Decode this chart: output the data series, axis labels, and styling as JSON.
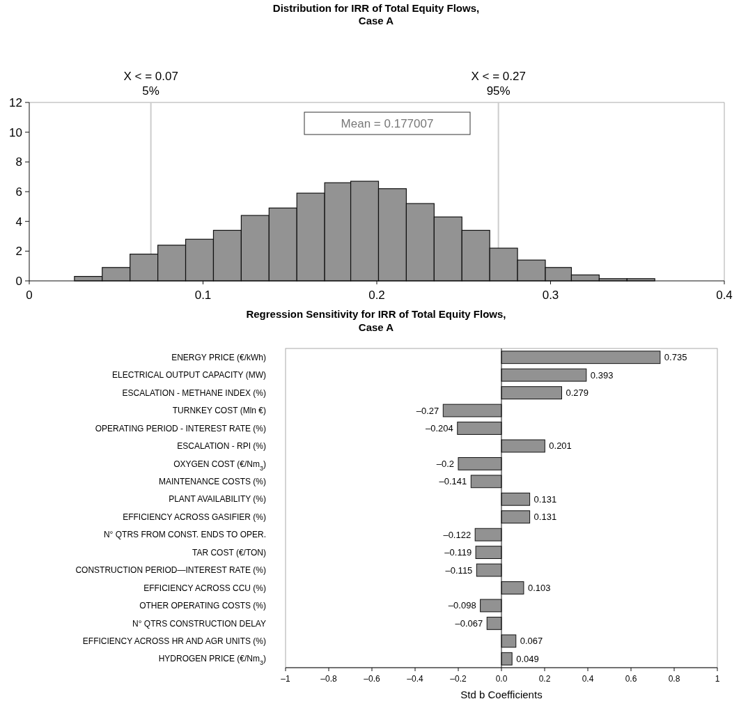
{
  "chart_data": [
    {
      "type": "histogram",
      "title": "Distribution for IRR of Total Equity Flows,\nCase A",
      "bins": [
        0.026,
        0.042,
        0.058,
        0.074,
        0.09,
        0.106,
        0.122,
        0.138,
        0.154,
        0.17,
        0.185,
        0.201,
        0.217,
        0.233,
        0.249,
        0.265,
        0.281,
        0.297,
        0.312,
        0.328,
        0.344,
        0.36
      ],
      "values": [
        0.3,
        0.9,
        1.8,
        2.4,
        2.8,
        3.4,
        4.4,
        4.9,
        5.9,
        6.6,
        6.7,
        6.2,
        5.2,
        4.3,
        3.4,
        2.2,
        1.4,
        0.9,
        0.4,
        0.15,
        0.15
      ],
      "color": "#939393",
      "xlim": [
        0,
        0.4
      ],
      "xticks": [
        0,
        0.1,
        0.2,
        0.3,
        0.4
      ],
      "ylim": [
        0,
        12
      ],
      "yticks": [
        0,
        2,
        4,
        6,
        8,
        10,
        12
      ],
      "ref_lines": [
        {
          "axis": "x",
          "value": 0.07,
          "label": "X < = 0.07\n5%",
          "color": "#cccccc"
        },
        {
          "axis": "x",
          "value": 0.27,
          "label": "X < = 0.27\n95%",
          "color": "#cccccc"
        }
      ],
      "annotations": [
        "Mean = 0.177007"
      ]
    },
    {
      "type": "bar",
      "orientation": "horizontal",
      "title": "Regression Sensitivity for IRR of Total Equity Flows,\nCase A",
      "xlabel": "Std b Coefficients",
      "categories": [
        "ENERGY PRICE (€/kWh)",
        "ELECTRICAL OUTPUT CAPACITY (MW)",
        "ESCALATION - METHANE INDEX (%)",
        "TURNKEY COST (Mln €)",
        "OPERATING PERIOD - INTEREST RATE (%)",
        "ESCALATION - RPI  (%)",
        "OXYGEN COST (€/Nm$_{3}$)",
        "MAINTENANCE COSTS (%)",
        "PLANT AVAILABILITY (%)",
        "EFFICIENCY ACROSS GASIFIER (%)",
        "N° QTRS FROM CONST. ENDS TO OPER.",
        "TAR COST (€/TON)",
        "CONSTRUCTION PERIOD—INTEREST RATE (%)",
        "EFFICIENCY ACROSS CCU (%)",
        "OTHER OPERATING COSTS (%)",
        "N° QTRS CONSTRUCTION DELAY",
        "EFFICIENCY ACROSS HR AND AGR UNITS (%)",
        "HYDROGEN PRICE (€/Nm$_{3}$)"
      ],
      "values": [
        0.735,
        0.393,
        0.279,
        -0.27,
        -0.204,
        0.201,
        -0.2,
        -0.141,
        0.131,
        0.131,
        -0.122,
        -0.119,
        -0.115,
        0.103,
        -0.098,
        -0.067,
        0.067,
        0.049
      ],
      "value_labels": [
        "0.735",
        "0.393",
        "0.279",
        "–0.27",
        "–0.204",
        "0.201",
        "–0.2",
        "–0.141",
        "0.131",
        "0.131",
        "–0.122",
        "–0.119",
        "–0.115",
        "0.103",
        "–0.098",
        "–0.067",
        "0.067",
        "0.049"
      ],
      "color": "#929292",
      "xlim": [
        -1,
        1
      ],
      "xticks": [
        {
          "value": -1,
          "label": "–1"
        },
        {
          "value": -0.8,
          "label": "–0.8"
        },
        {
          "value": -0.6,
          "label": "–0.6"
        },
        {
          "value": -0.4,
          "label": "–0.4"
        },
        {
          "value": -0.2,
          "label": "–0.2"
        },
        {
          "value": 0,
          "label": "0.0"
        },
        0.2,
        0.4,
        0.6,
        0.8,
        1
      ]
    }
  ]
}
